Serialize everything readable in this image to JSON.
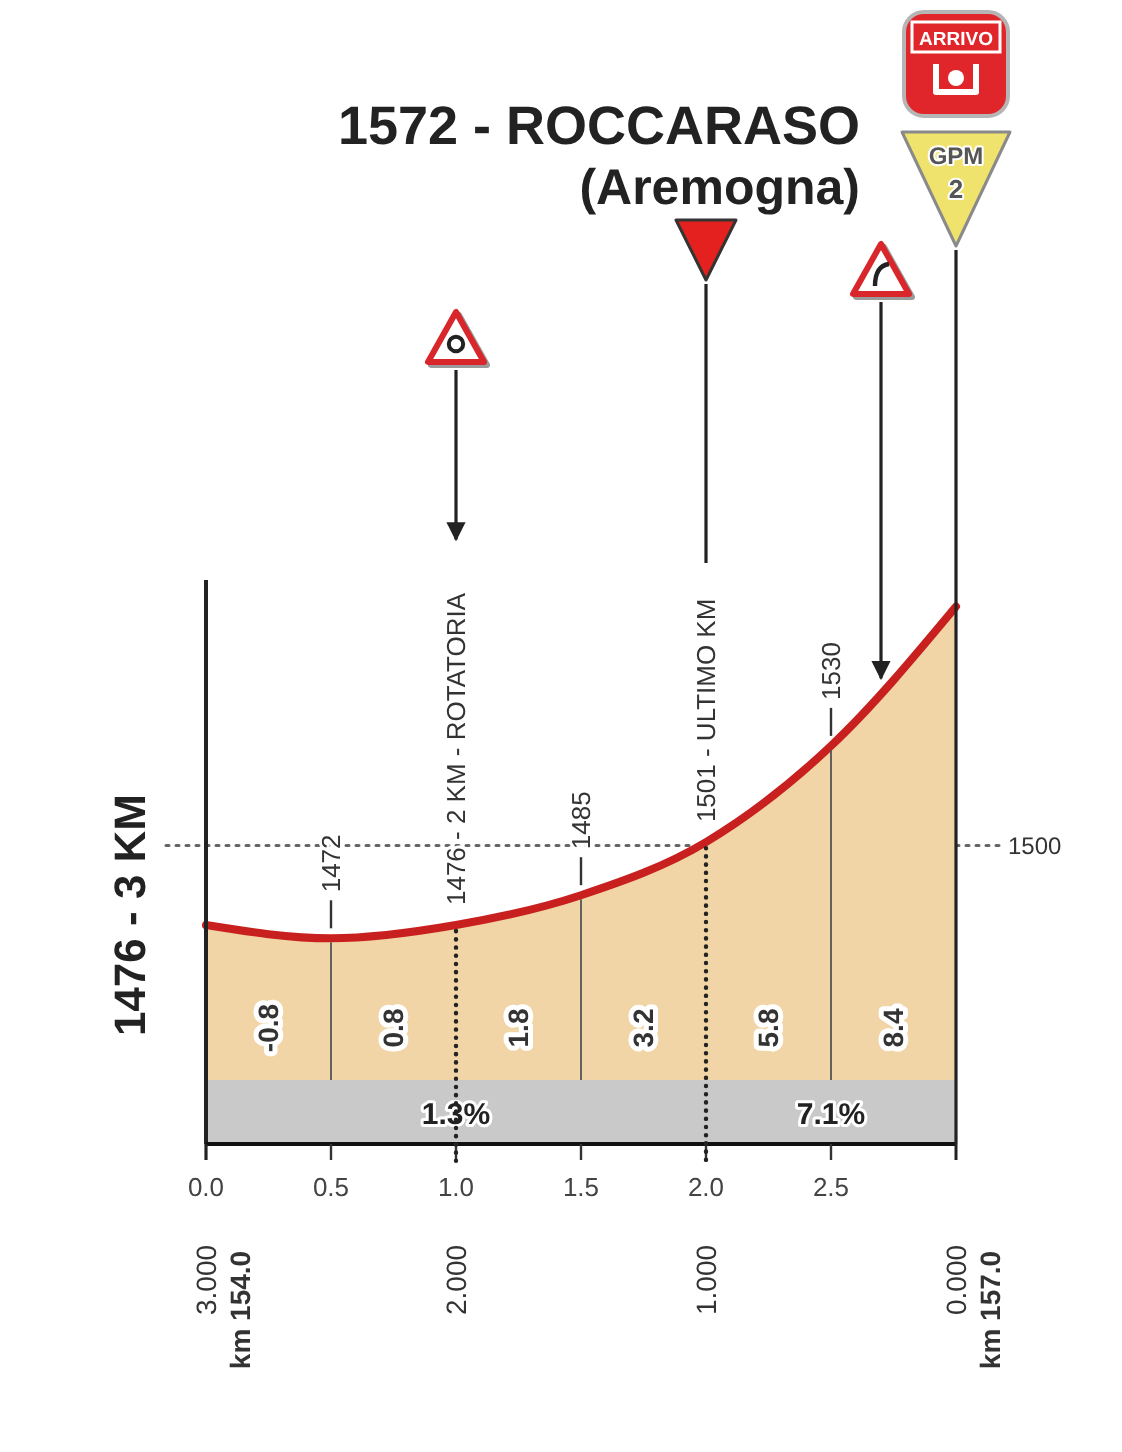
{
  "chart_data": {
    "type": "area",
    "title": "1572 - ROCCARASO",
    "subtitle": "(Aremogna)",
    "x": [
      0,
      0.5,
      1,
      1.5,
      2,
      2.5,
      3
    ],
    "series": [
      {
        "color": "#f1d5a6",
        "values": [
          1476,
          1472,
          1476,
          1485,
          1501,
          1530,
          1572
        ],
        "value_labels": [
          "1476 - 3 KM",
          "1472",
          null,
          "1485",
          null,
          "1530",
          null
        ]
      }
    ],
    "xlim": [
      0,
      3
    ],
    "ylim": [
      1410,
      1580
    ],
    "xticks": [
      {
        "value": 0,
        "label": "0.0"
      },
      0.5,
      {
        "value": 1,
        "label": "1.0"
      },
      1.5,
      {
        "value": 2,
        "label": "2.0"
      },
      2.5
    ],
    "x2lim": [
      3,
      0
    ],
    "x2ticks": [
      {
        "value": 3,
        "label": "3.000"
      },
      {
        "value": 2,
        "label": "2.000"
      },
      {
        "value": 1,
        "label": "1.000"
      },
      {
        "value": 0,
        "label": "0.000"
      }
    ],
    "ref_lines": [
      {
        "axis": "y",
        "value": 1500,
        "label": "1500",
        "line_style": "dotted"
      },
      {
        "axis": "x",
        "value": 1,
        "label": "1476 - 2 KM - ROTATORIA"
      },
      {
        "axis": "x",
        "value": 2,
        "label": "1501 - ULTIMO KM"
      },
      {
        "axis": "x",
        "value": 2.7
      },
      {
        "axis": "x",
        "value": 3
      },
      {
        "axis": "x",
        "value": 0.5,
        "color": "#555555"
      },
      {
        "axis": "x",
        "value": 1.5,
        "color": "#555555"
      },
      {
        "axis": "x",
        "value": 2.5,
        "color": "#555555"
      }
    ],
    "bands": [
      {
        "axis": "x",
        "from": 0,
        "to": 2,
        "label": "1.3%",
        "color": "#c9c9c9"
      },
      {
        "axis": "x",
        "from": 2,
        "to": 3,
        "label": "7.1%",
        "color": "#c9c9c9"
      }
    ],
    "annotations": [
      "-0.8",
      "0.8",
      "1.8",
      "3.2",
      "5.8",
      "8.4",
      "km 154.0",
      "km 157.0",
      "ARRIVO",
      "GPM",
      "2"
    ]
  }
}
